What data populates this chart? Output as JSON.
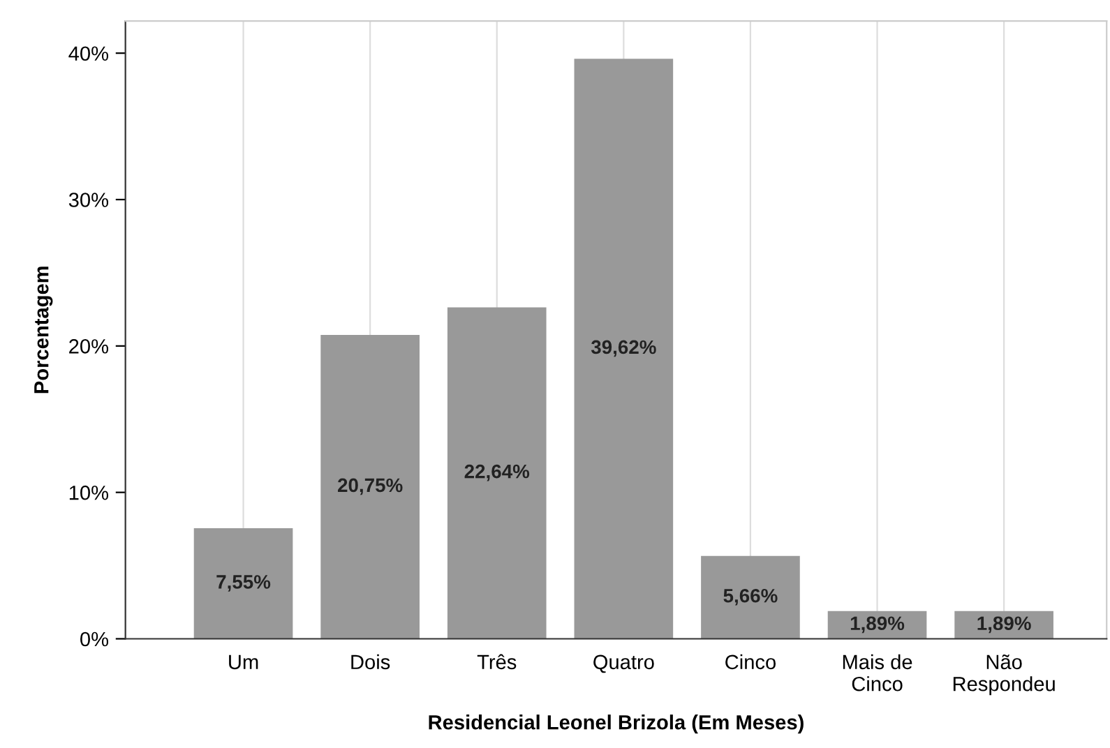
{
  "chart_data": {
    "type": "bar",
    "xlabel": "Residencial Leonel Brizola (Em Meses)",
    "ylabel": "Porcentagem",
    "categories": [
      "Um",
      "Dois",
      "Três",
      "Quatro",
      "Cinco",
      "Mais de\nCinco",
      "Não\nRespondeu"
    ],
    "values": [
      7.55,
      20.75,
      22.64,
      39.62,
      5.66,
      1.89,
      1.89
    ],
    "color": "#999999",
    "value_labels": [
      "7,55%",
      "20,75%",
      "22,64%",
      "39,62%",
      "5,66%",
      "1,89%",
      "1,89%"
    ],
    "ylim": [
      0,
      42.2
    ],
    "yticks": [
      {
        "value": 0,
        "label": "0%"
      },
      {
        "value": 10,
        "label": "10%"
      },
      {
        "value": 20,
        "label": "20%"
      },
      {
        "value": 30,
        "label": "30%"
      },
      {
        "value": 40,
        "label": "40%"
      }
    ],
    "grid": "x",
    "legend": false
  }
}
